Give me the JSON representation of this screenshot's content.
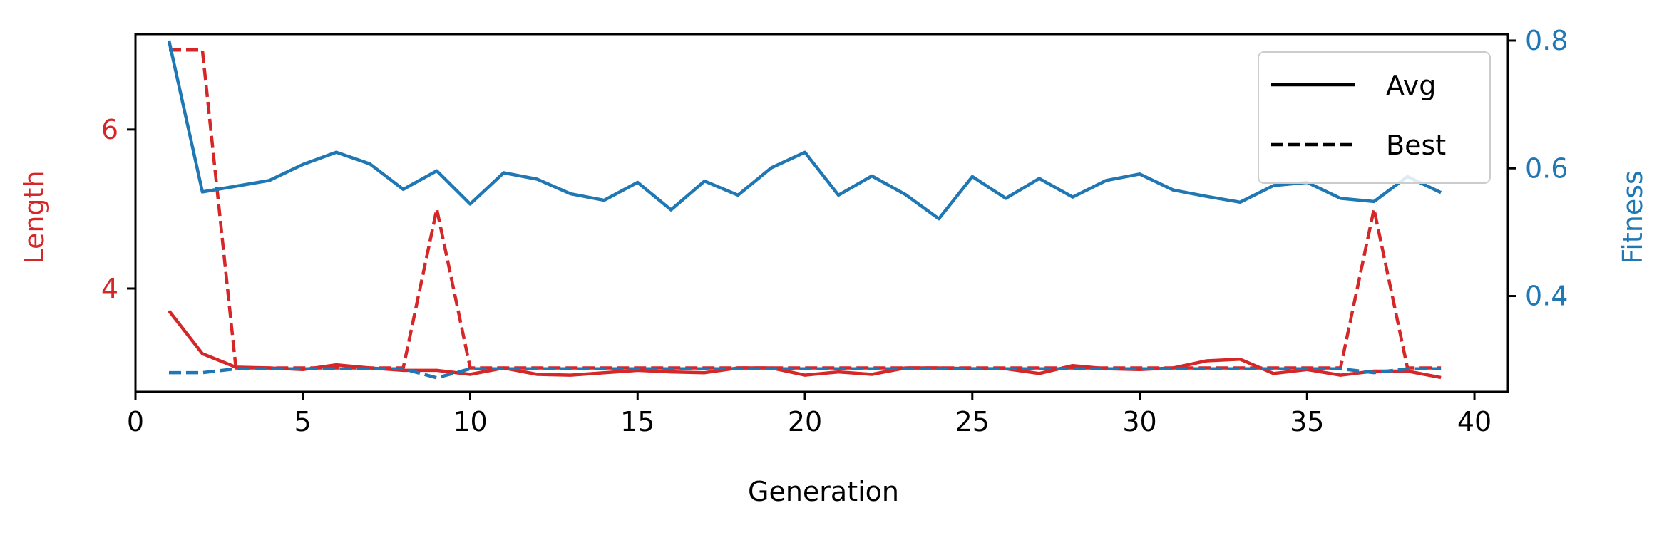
{
  "chart_data": {
    "type": "line",
    "xlabel": "Generation",
    "ylabel_left": "Length",
    "ylabel_right": "Fitness",
    "xlim": [
      0,
      41
    ],
    "ylim_left": [
      2.7,
      7.2
    ],
    "ylim_right": [
      0.25,
      0.81
    ],
    "xticks": [
      0,
      5,
      10,
      15,
      20,
      25,
      30,
      35,
      40
    ],
    "yticks_left": [
      4,
      6
    ],
    "yticks_right": [
      0.4,
      0.6,
      0.8
    ],
    "grid": false,
    "legend": {
      "position": "top-right",
      "entries": [
        {
          "label": "Avg",
          "style": "solid"
        },
        {
          "label": "Best",
          "style": "dashed"
        }
      ]
    },
    "colors": {
      "length": "#d62728",
      "fitness": "#1f77b4"
    },
    "x": [
      1,
      2,
      3,
      4,
      5,
      6,
      7,
      8,
      9,
      10,
      11,
      12,
      13,
      14,
      15,
      16,
      17,
      18,
      19,
      20,
      21,
      22,
      23,
      24,
      25,
      26,
      27,
      28,
      29,
      30,
      31,
      32,
      33,
      34,
      35,
      36,
      37,
      38,
      39
    ],
    "series": [
      {
        "axis": "left",
        "metric": "length",
        "style": "solid",
        "values": [
          3.72,
          3.18,
          3.01,
          3.0,
          2.98,
          3.04,
          3.0,
          2.97,
          2.97,
          2.92,
          3.0,
          2.92,
          2.91,
          2.94,
          2.97,
          2.95,
          2.94,
          3.0,
          3.0,
          2.91,
          2.95,
          2.92,
          3.0,
          3.0,
          2.99,
          2.99,
          2.93,
          3.03,
          2.99,
          2.98,
          3.0,
          3.09,
          3.11,
          2.93,
          2.98,
          2.91,
          2.96,
          2.96,
          2.88
        ]
      },
      {
        "axis": "left",
        "metric": "length",
        "style": "dashed",
        "values": [
          7.0,
          7.0,
          3.0,
          3.0,
          3.0,
          3.0,
          3.0,
          3.0,
          5.0,
          3.0,
          3.0,
          3.0,
          3.0,
          3.0,
          3.0,
          3.0,
          3.0,
          3.0,
          3.0,
          3.0,
          3.0,
          3.0,
          3.0,
          3.0,
          3.0,
          3.0,
          3.0,
          3.0,
          3.0,
          3.0,
          3.0,
          3.0,
          3.0,
          3.0,
          3.0,
          3.0,
          5.0,
          3.0,
          3.0
        ]
      },
      {
        "axis": "right",
        "metric": "fitness",
        "style": "solid",
        "values": [
          0.8,
          0.563,
          0.572,
          0.581,
          0.606,
          0.625,
          0.607,
          0.567,
          0.596,
          0.544,
          0.593,
          0.583,
          0.56,
          0.55,
          0.578,
          0.535,
          0.58,
          0.558,
          0.601,
          0.625,
          0.558,
          0.588,
          0.559,
          0.521,
          0.587,
          0.553,
          0.584,
          0.555,
          0.581,
          0.591,
          0.566,
          0.556,
          0.547,
          0.573,
          0.578,
          0.553,
          0.548,
          0.587,
          0.562
        ]
      },
      {
        "axis": "right",
        "metric": "fitness",
        "style": "dashed",
        "values": [
          0.28,
          0.28,
          0.286,
          0.286,
          0.286,
          0.286,
          0.286,
          0.286,
          0.272,
          0.286,
          0.286,
          0.286,
          0.286,
          0.286,
          0.286,
          0.286,
          0.286,
          0.286,
          0.286,
          0.286,
          0.286,
          0.286,
          0.286,
          0.286,
          0.286,
          0.286,
          0.286,
          0.286,
          0.286,
          0.286,
          0.286,
          0.286,
          0.286,
          0.286,
          0.286,
          0.286,
          0.28,
          0.286,
          0.286
        ]
      }
    ]
  }
}
